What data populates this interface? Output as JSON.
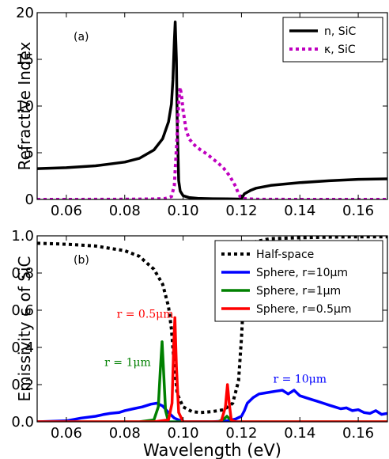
{
  "chart_data": [
    {
      "type": "line",
      "panel_label": "(a)",
      "ylabel": "Refractive Index",
      "xlim": [
        0.05,
        0.17
      ],
      "ylim": [
        0,
        20
      ],
      "x_ticks": [
        "0.06",
        "0.08",
        "0.10",
        "0.12",
        "0.14",
        "0.16"
      ],
      "y_ticks": [
        "0",
        "5",
        "10",
        "15",
        "20"
      ],
      "legend": "top-right",
      "grid": false,
      "series": [
        {
          "name": "n, SiC",
          "color": "#000000",
          "style": "solid",
          "points": [
            [
              0.05,
              3.3
            ],
            [
              0.06,
              3.4
            ],
            [
              0.07,
              3.6
            ],
            [
              0.08,
              4.0
            ],
            [
              0.085,
              4.4
            ],
            [
              0.09,
              5.3
            ],
            [
              0.093,
              6.5
            ],
            [
              0.095,
              8.3
            ],
            [
              0.096,
              10.2
            ],
            [
              0.0965,
              12.8
            ],
            [
              0.097,
              17.0
            ],
            [
              0.0973,
              19.0
            ],
            [
              0.0977,
              15.0
            ],
            [
              0.098,
              8.0
            ],
            [
              0.0985,
              2.0
            ],
            [
              0.099,
              0.9
            ],
            [
              0.1,
              0.4
            ],
            [
              0.102,
              0.2
            ],
            [
              0.105,
              0.12
            ],
            [
              0.11,
              0.08
            ],
            [
              0.115,
              0.06
            ],
            [
              0.119,
              0.04
            ],
            [
              0.12,
              0.1
            ],
            [
              0.121,
              0.6
            ],
            [
              0.123,
              0.95
            ],
            [
              0.125,
              1.2
            ],
            [
              0.13,
              1.5
            ],
            [
              0.14,
              1.8
            ],
            [
              0.15,
              2.0
            ],
            [
              0.16,
              2.15
            ],
            [
              0.17,
              2.2
            ]
          ]
        },
        {
          "name": "κ, SiC",
          "color": "#bf00bf",
          "style": "dotted",
          "points": [
            [
              0.05,
              0.0
            ],
            [
              0.06,
              0.0
            ],
            [
              0.07,
              0.01
            ],
            [
              0.08,
              0.02
            ],
            [
              0.09,
              0.05
            ],
            [
              0.094,
              0.1
            ],
            [
              0.096,
              0.3
            ],
            [
              0.097,
              1.5
            ],
            [
              0.0978,
              6.0
            ],
            [
              0.0985,
              10.5
            ],
            [
              0.099,
              12.0
            ],
            [
              0.0995,
              11.0
            ],
            [
              0.1,
              9.5
            ],
            [
              0.101,
              7.5
            ],
            [
              0.102,
              6.5
            ],
            [
              0.104,
              5.8
            ],
            [
              0.106,
              5.3
            ],
            [
              0.108,
              4.9
            ],
            [
              0.11,
              4.4
            ],
            [
              0.112,
              3.9
            ],
            [
              0.114,
              3.3
            ],
            [
              0.116,
              2.5
            ],
            [
              0.118,
              1.4
            ],
            [
              0.119,
              0.6
            ],
            [
              0.12,
              0.1
            ],
            [
              0.125,
              0.02
            ],
            [
              0.14,
              0.0
            ],
            [
              0.17,
              0.0
            ]
          ]
        }
      ]
    },
    {
      "type": "line",
      "panel_label": "(b)",
      "ylabel": "Emissivity ϵ of SiC",
      "xlabel": "Wavelength (eV)",
      "xlim": [
        0.05,
        0.17
      ],
      "ylim": [
        0,
        1
      ],
      "x_ticks": [
        "0.06",
        "0.08",
        "0.10",
        "0.12",
        "0.14",
        "0.16"
      ],
      "y_ticks": [
        "0.0",
        "0.2",
        "0.4",
        "0.6",
        "0.8",
        "1.0"
      ],
      "legend": "top-right",
      "grid": false,
      "series": [
        {
          "name": "Half-space",
          "color": "#000000",
          "style": "dotted",
          "points": [
            [
              0.05,
              0.96
            ],
            [
              0.06,
              0.955
            ],
            [
              0.07,
              0.945
            ],
            [
              0.08,
              0.92
            ],
            [
              0.085,
              0.89
            ],
            [
              0.09,
              0.82
            ],
            [
              0.093,
              0.74
            ],
            [
              0.095,
              0.62
            ],
            [
              0.096,
              0.5
            ],
            [
              0.097,
              0.3
            ],
            [
              0.098,
              0.15
            ],
            [
              0.1,
              0.08
            ],
            [
              0.103,
              0.055
            ],
            [
              0.106,
              0.05
            ],
            [
              0.11,
              0.055
            ],
            [
              0.114,
              0.065
            ],
            [
              0.117,
              0.1
            ],
            [
              0.119,
              0.22
            ],
            [
              0.12,
              0.45
            ],
            [
              0.121,
              0.75
            ],
            [
              0.123,
              0.93
            ],
            [
              0.125,
              0.97
            ],
            [
              0.13,
              0.985
            ],
            [
              0.14,
              0.99
            ],
            [
              0.15,
              0.993
            ],
            [
              0.16,
              0.995
            ],
            [
              0.17,
              0.995
            ]
          ]
        },
        {
          "name": "Sphere, r=10μm",
          "legend_math": "r = 10μm",
          "color": "#0000ff",
          "style": "solid",
          "points": [
            [
              0.05,
              0.0
            ],
            [
              0.06,
              0.005
            ],
            [
              0.065,
              0.02
            ],
            [
              0.07,
              0.03
            ],
            [
              0.073,
              0.04
            ],
            [
              0.075,
              0.045
            ],
            [
              0.078,
              0.05
            ],
            [
              0.08,
              0.06
            ],
            [
              0.083,
              0.07
            ],
            [
              0.086,
              0.08
            ],
            [
              0.089,
              0.095
            ],
            [
              0.091,
              0.1
            ],
            [
              0.093,
              0.085
            ],
            [
              0.095,
              0.05
            ],
            [
              0.097,
              0.02
            ],
            [
              0.1,
              0.0
            ],
            [
              0.11,
              0.0
            ],
            [
              0.115,
              0.005
            ],
            [
              0.118,
              0.015
            ],
            [
              0.12,
              0.03
            ],
            [
              0.121,
              0.06
            ],
            [
              0.122,
              0.1
            ],
            [
              0.124,
              0.13
            ],
            [
              0.126,
              0.15
            ],
            [
              0.128,
              0.155
            ],
            [
              0.13,
              0.16
            ],
            [
              0.132,
              0.165
            ],
            [
              0.134,
              0.17
            ],
            [
              0.136,
              0.15
            ],
            [
              0.138,
              0.17
            ],
            [
              0.14,
              0.14
            ],
            [
              0.142,
              0.13
            ],
            [
              0.144,
              0.12
            ],
            [
              0.146,
              0.11
            ],
            [
              0.148,
              0.1
            ],
            [
              0.15,
              0.09
            ],
            [
              0.152,
              0.08
            ],
            [
              0.154,
              0.07
            ],
            [
              0.156,
              0.075
            ],
            [
              0.158,
              0.06
            ],
            [
              0.16,
              0.065
            ],
            [
              0.162,
              0.05
            ],
            [
              0.164,
              0.045
            ],
            [
              0.166,
              0.06
            ],
            [
              0.168,
              0.04
            ],
            [
              0.17,
              0.045
            ]
          ]
        },
        {
          "name": "Sphere, r=1μm",
          "legend_math": "r = 1μm",
          "color": "#008000",
          "style": "solid",
          "points": [
            [
              0.05,
              0.0
            ],
            [
              0.085,
              0.0
            ],
            [
              0.09,
              0.01
            ],
            [
              0.0915,
              0.08
            ],
            [
              0.0922,
              0.28
            ],
            [
              0.0928,
              0.43
            ],
            [
              0.0933,
              0.28
            ],
            [
              0.094,
              0.06
            ],
            [
              0.095,
              0.0
            ],
            [
              0.112,
              0.0
            ],
            [
              0.114,
              0.015
            ],
            [
              0.115,
              0.03
            ],
            [
              0.116,
              0.015
            ],
            [
              0.117,
              0.0
            ],
            [
              0.17,
              0.0
            ]
          ]
        },
        {
          "name": "Sphere, r=0.5μm",
          "legend_math": "r = 0.5μm",
          "color": "#ff0000",
          "style": "solid",
          "points": [
            [
              0.05,
              0.0
            ],
            [
              0.09,
              0.0
            ],
            [
              0.095,
              0.01
            ],
            [
              0.0962,
              0.1
            ],
            [
              0.0968,
              0.42
            ],
            [
              0.0972,
              0.56
            ],
            [
              0.0977,
              0.3
            ],
            [
              0.0985,
              0.05
            ],
            [
              0.1,
              0.0
            ],
            [
              0.113,
              0.0
            ],
            [
              0.1145,
              0.08
            ],
            [
              0.1152,
              0.2
            ],
            [
              0.1158,
              0.1
            ],
            [
              0.1165,
              0.01
            ],
            [
              0.118,
              0.0
            ],
            [
              0.17,
              0.0
            ]
          ]
        }
      ],
      "annotations": [
        {
          "text": "r = 0.5μm",
          "x": 0.087,
          "y": 0.56,
          "color": "#ff0000"
        },
        {
          "text": "r = 1μm",
          "x": 0.081,
          "y": 0.3,
          "color": "#008000"
        },
        {
          "text": "r = 10μm",
          "x": 0.14,
          "y": 0.21,
          "color": "#0000ff"
        }
      ]
    }
  ]
}
